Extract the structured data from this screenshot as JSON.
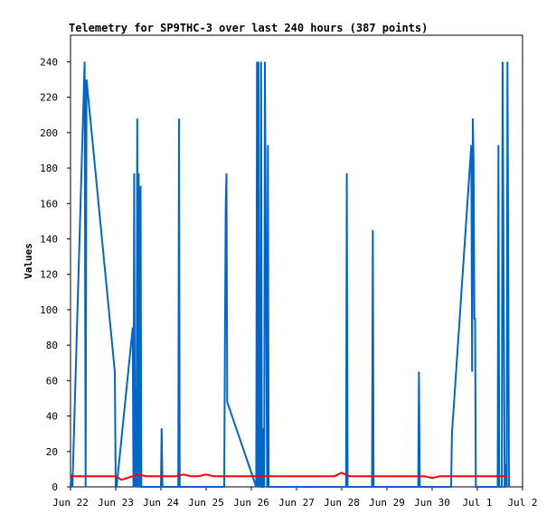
{
  "chart_data": {
    "type": "line",
    "title": "Telemetry for SP9THC-3 over last 240 hours (387 points)",
    "ylabel": "Values",
    "xlabel": "",
    "ylim": [
      0,
      255
    ],
    "xlim": [
      0,
      240
    ],
    "grid": false,
    "legend": "none",
    "x_ticks": [
      {
        "label": "Jun 22",
        "x": 0
      },
      {
        "label": "Jun 23",
        "x": 24
      },
      {
        "label": "Jun 24",
        "x": 48
      },
      {
        "label": "Jun 25",
        "x": 72
      },
      {
        "label": "Jun 26",
        "x": 96
      },
      {
        "label": "Jun 27",
        "x": 120
      },
      {
        "label": "Jun 28",
        "x": 144
      },
      {
        "label": "Jun 29",
        "x": 168
      },
      {
        "label": "Jun 30",
        "x": 192
      },
      {
        "label": "Jul 1",
        "x": 216
      },
      {
        "label": "Jul 2",
        "x": 240
      }
    ],
    "y_ticks": [
      0,
      20,
      40,
      60,
      80,
      100,
      120,
      140,
      160,
      180,
      200,
      220,
      240
    ],
    "series": [
      {
        "color": "#0066cc",
        "x": [
          0,
          0.5,
          1,
          7.5,
          8,
          8.5,
          23.5,
          24,
          24.5,
          33,
          33.4,
          33.8,
          34.2,
          34.5,
          35,
          35.4,
          35.8,
          36.2,
          36.6,
          37.2,
          37.6,
          48,
          48.4,
          48.8,
          57.2,
          57.6,
          58,
          81.6,
          82,
          82.4,
          82.8,
          83.2,
          98.6,
          99,
          99.4,
          99.8,
          100.2,
          100.6,
          100.8,
          101.2,
          101.6,
          102,
          102.4,
          102.8,
          103.2,
          104.4,
          104.8,
          105.2,
          108.2,
          108.6,
          109,
          130,
          146.3,
          146.7,
          147.1,
          160.1,
          160.5,
          160.9,
          184.6,
          185,
          185.4,
          201.7,
          202.1,
          202.5,
          212.8,
          213.2,
          213.6,
          214,
          214.4,
          214.8,
          215.2,
          226.8,
          227.2,
          227.6,
          228,
          228.4,
          229,
          229.4,
          230.5,
          230.8,
          231.2,
          231.6,
          232,
          232.4,
          232.8
        ],
        "y": [
          0,
          7,
          0,
          240,
          0,
          230,
          65,
          0,
          0,
          90,
          0,
          177,
          0,
          55,
          0,
          208,
          0,
          177,
          0,
          170,
          0,
          0,
          33,
          0,
          0,
          208,
          0,
          0,
          80,
          160,
          177,
          48,
          0,
          240,
          0,
          240,
          0,
          17,
          0,
          240,
          0,
          0,
          33,
          0,
          240,
          0,
          193,
          0,
          0,
          0,
          0,
          0,
          0,
          177,
          0,
          0,
          145,
          0,
          0,
          65,
          0,
          0,
          0,
          30,
          193,
          65,
          208,
          185,
          95,
          95,
          0,
          0,
          193,
          0,
          0,
          0,
          0,
          240,
          0,
          0,
          13,
          0,
          240,
          120,
          0
        ]
      },
      {
        "color": "#ff0000",
        "x": [
          0,
          20,
          24,
          27,
          30,
          33,
          36,
          40,
          48,
          52,
          56,
          60,
          64,
          68,
          72,
          76,
          80,
          88,
          96,
          104,
          120,
          128,
          136,
          140,
          142,
          144,
          148,
          156,
          168,
          176,
          184,
          188,
          192,
          196,
          200,
          208,
          216,
          224,
          232
        ],
        "y": [
          6,
          6,
          6,
          4,
          5,
          6,
          7,
          6,
          6,
          6,
          6,
          7,
          6,
          6,
          7,
          6,
          6,
          6,
          6,
          6,
          6,
          6,
          6,
          6,
          7,
          8,
          6,
          6,
          6,
          6,
          6,
          6,
          5,
          6,
          6,
          6,
          6,
          6,
          6
        ]
      }
    ]
  }
}
